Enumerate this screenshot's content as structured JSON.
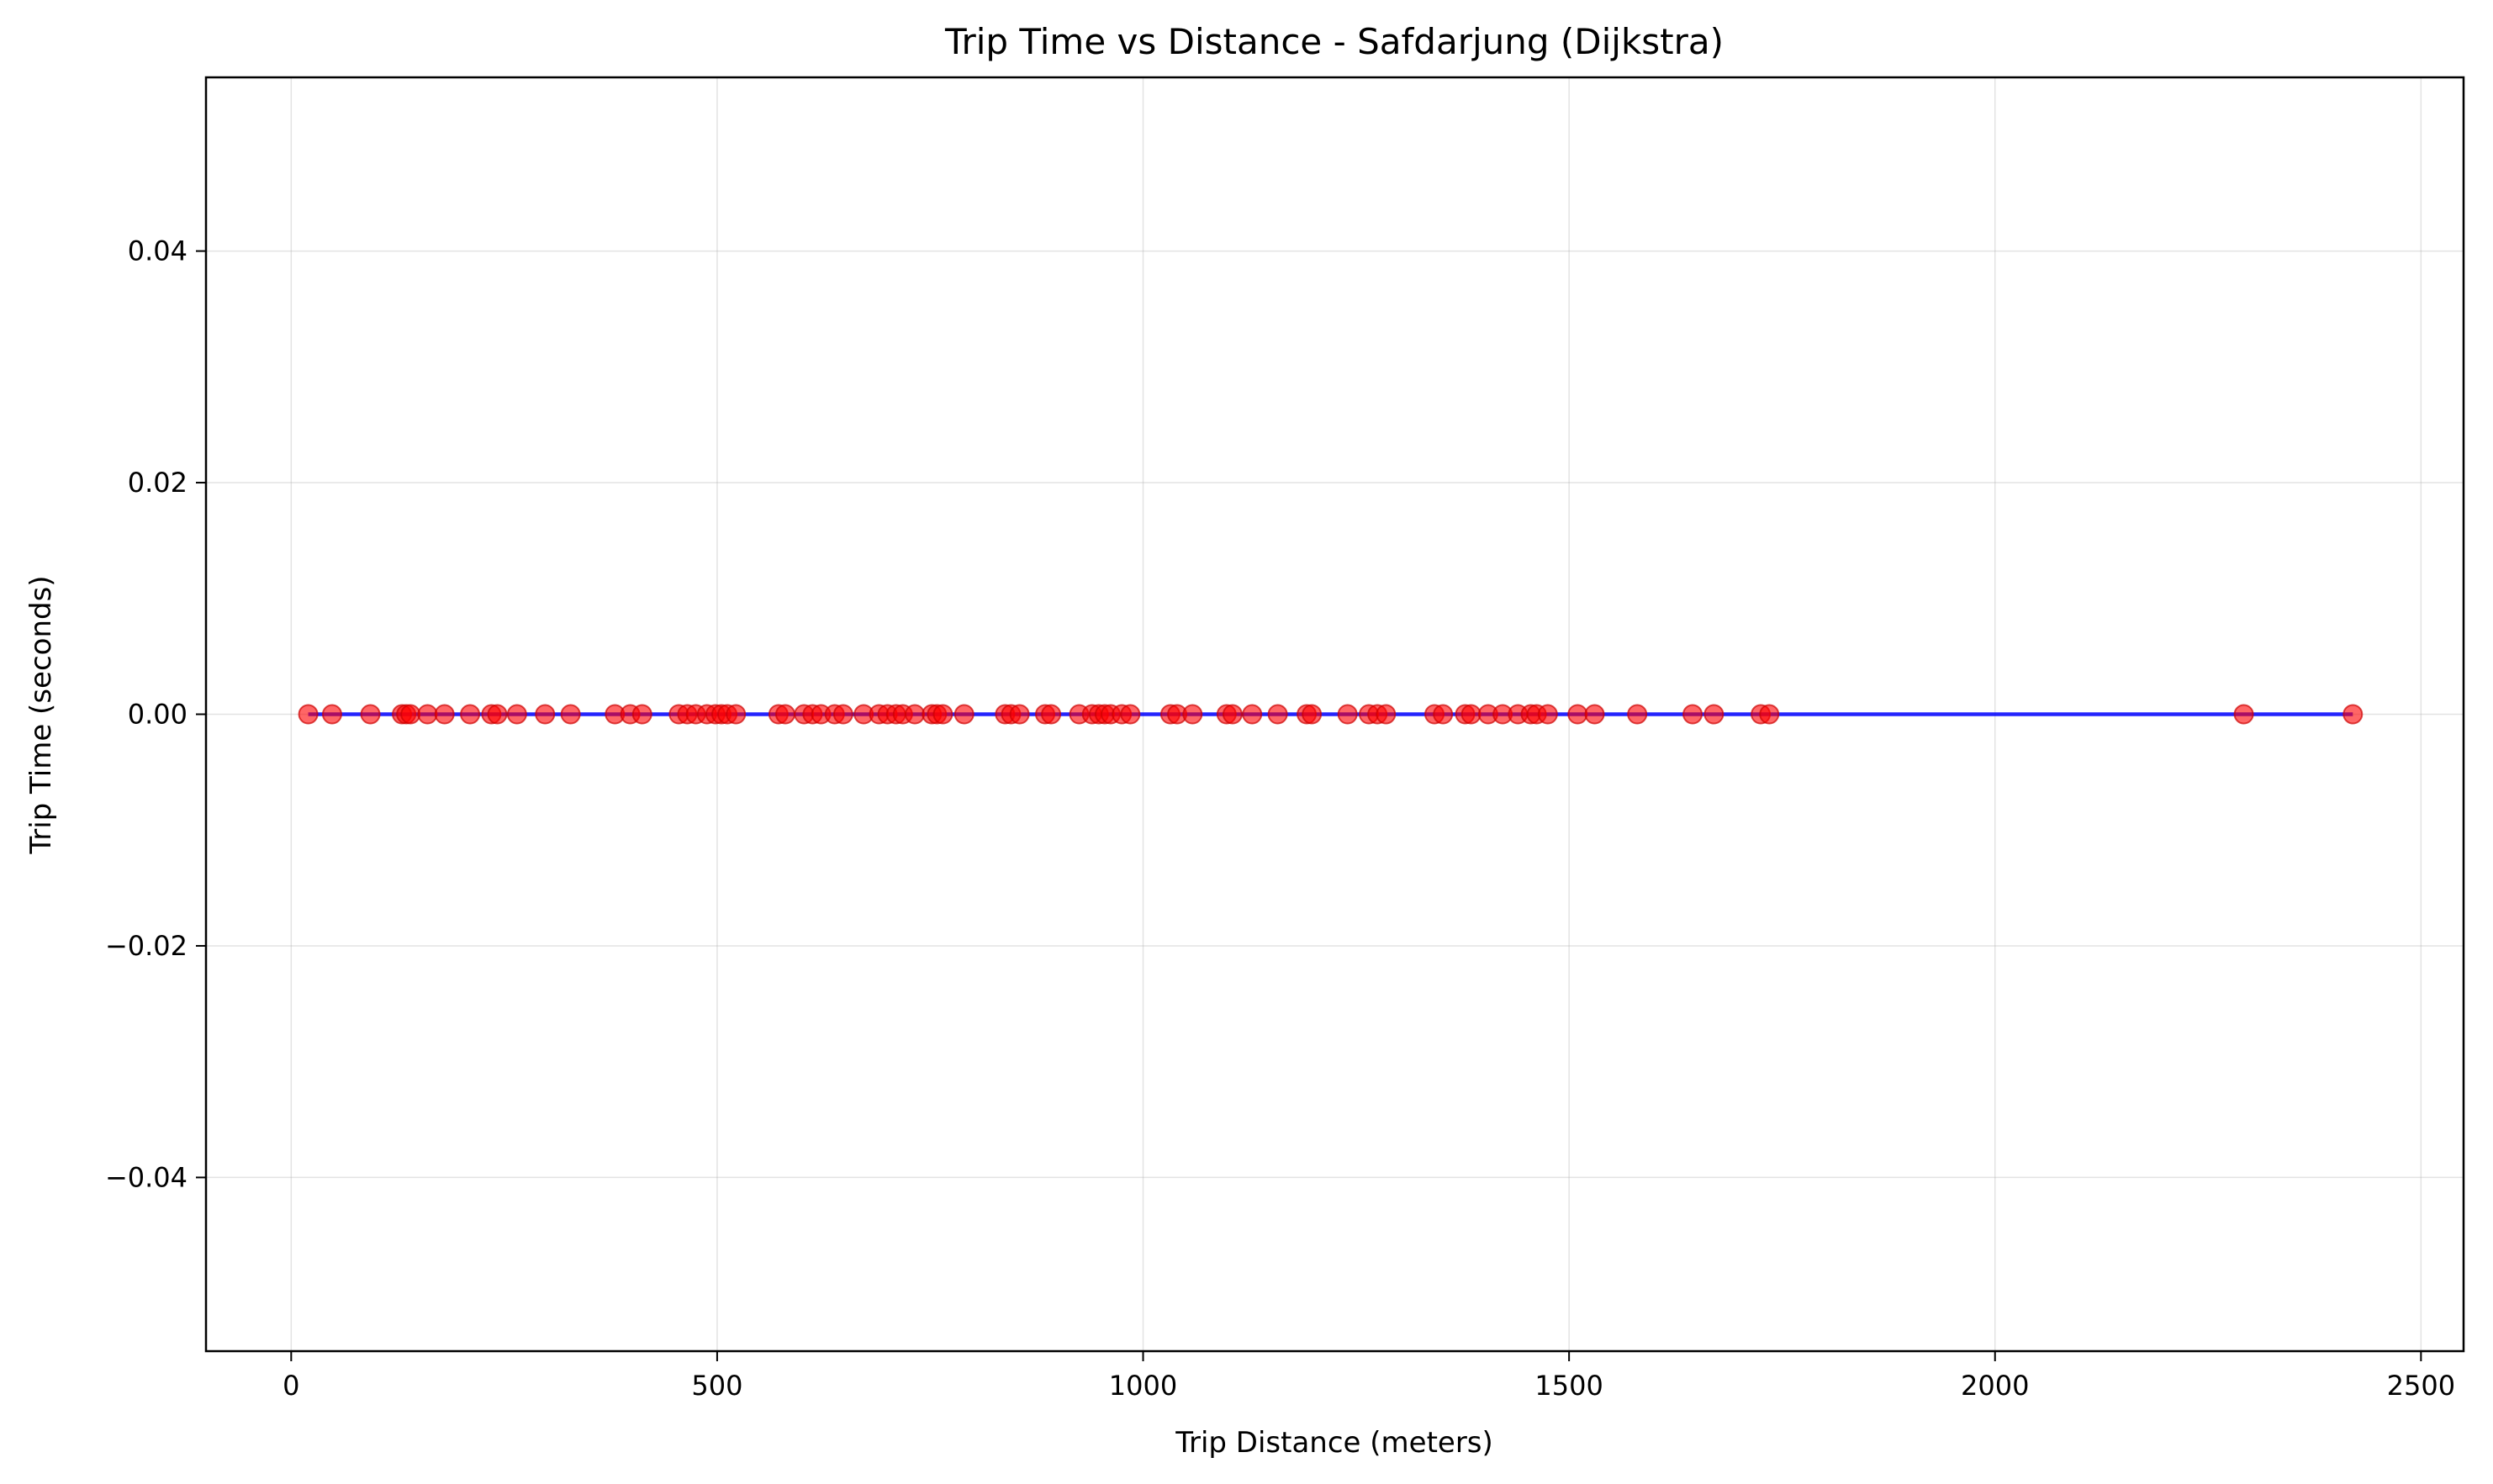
{
  "chart_data": {
    "type": "scatter",
    "title": "Trip Time vs Distance - Safdarjung (Dijkstra)",
    "xlabel": "Trip Distance (meters)",
    "ylabel": "Trip Time (seconds)",
    "xlim": [
      -100,
      2550
    ],
    "ylim": [
      -0.055,
      0.055
    ],
    "xticks": [
      0,
      500,
      1000,
      1500,
      2000,
      2500
    ],
    "xtick_labels": [
      "0",
      "500",
      "1000",
      "1500",
      "2000",
      "2500"
    ],
    "yticks": [
      -0.04,
      -0.02,
      0.0,
      0.02,
      0.04
    ],
    "ytick_labels": [
      "−0.04",
      "−0.02",
      "0.00",
      "0.02",
      "0.04"
    ],
    "grid": true,
    "point_color": "#ff0000",
    "point_edge_color": "#cc0000",
    "trend_line_color": "#0000ff",
    "points": [
      {
        "x": 20,
        "y": 0
      },
      {
        "x": 48,
        "y": 0
      },
      {
        "x": 93,
        "y": 0
      },
      {
        "x": 130,
        "y": 0
      },
      {
        "x": 135,
        "y": 0
      },
      {
        "x": 140,
        "y": 0
      },
      {
        "x": 160,
        "y": 0
      },
      {
        "x": 180,
        "y": 0
      },
      {
        "x": 210,
        "y": 0
      },
      {
        "x": 235,
        "y": 0
      },
      {
        "x": 242,
        "y": 0
      },
      {
        "x": 265,
        "y": 0
      },
      {
        "x": 298,
        "y": 0
      },
      {
        "x": 328,
        "y": 0
      },
      {
        "x": 380,
        "y": 0
      },
      {
        "x": 398,
        "y": 0
      },
      {
        "x": 412,
        "y": 0
      },
      {
        "x": 455,
        "y": 0
      },
      {
        "x": 465,
        "y": 0
      },
      {
        "x": 475,
        "y": 0
      },
      {
        "x": 488,
        "y": 0
      },
      {
        "x": 498,
        "y": 0
      },
      {
        "x": 505,
        "y": 0
      },
      {
        "x": 512,
        "y": 0
      },
      {
        "x": 522,
        "y": 0
      },
      {
        "x": 572,
        "y": 0
      },
      {
        "x": 580,
        "y": 0
      },
      {
        "x": 602,
        "y": 0
      },
      {
        "x": 612,
        "y": 0
      },
      {
        "x": 622,
        "y": 0
      },
      {
        "x": 638,
        "y": 0
      },
      {
        "x": 648,
        "y": 0
      },
      {
        "x": 672,
        "y": 0
      },
      {
        "x": 690,
        "y": 0
      },
      {
        "x": 700,
        "y": 0
      },
      {
        "x": 710,
        "y": 0
      },
      {
        "x": 718,
        "y": 0
      },
      {
        "x": 732,
        "y": 0
      },
      {
        "x": 752,
        "y": 0
      },
      {
        "x": 758,
        "y": 0
      },
      {
        "x": 765,
        "y": 0
      },
      {
        "x": 790,
        "y": 0
      },
      {
        "x": 838,
        "y": 0
      },
      {
        "x": 845,
        "y": 0
      },
      {
        "x": 855,
        "y": 0
      },
      {
        "x": 885,
        "y": 0
      },
      {
        "x": 892,
        "y": 0
      },
      {
        "x": 925,
        "y": 0
      },
      {
        "x": 940,
        "y": 0
      },
      {
        "x": 948,
        "y": 0
      },
      {
        "x": 955,
        "y": 0
      },
      {
        "x": 962,
        "y": 0
      },
      {
        "x": 975,
        "y": 0
      },
      {
        "x": 985,
        "y": 0
      },
      {
        "x": 1032,
        "y": 0
      },
      {
        "x": 1040,
        "y": 0
      },
      {
        "x": 1058,
        "y": 0
      },
      {
        "x": 1098,
        "y": 0
      },
      {
        "x": 1105,
        "y": 0
      },
      {
        "x": 1128,
        "y": 0
      },
      {
        "x": 1158,
        "y": 0
      },
      {
        "x": 1192,
        "y": 0
      },
      {
        "x": 1198,
        "y": 0
      },
      {
        "x": 1240,
        "y": 0
      },
      {
        "x": 1265,
        "y": 0
      },
      {
        "x": 1275,
        "y": 0
      },
      {
        "x": 1285,
        "y": 0
      },
      {
        "x": 1342,
        "y": 0
      },
      {
        "x": 1352,
        "y": 0
      },
      {
        "x": 1378,
        "y": 0
      },
      {
        "x": 1385,
        "y": 0
      },
      {
        "x": 1405,
        "y": 0
      },
      {
        "x": 1422,
        "y": 0
      },
      {
        "x": 1440,
        "y": 0
      },
      {
        "x": 1455,
        "y": 0
      },
      {
        "x": 1462,
        "y": 0
      },
      {
        "x": 1475,
        "y": 0
      },
      {
        "x": 1510,
        "y": 0
      },
      {
        "x": 1530,
        "y": 0
      },
      {
        "x": 1580,
        "y": 0
      },
      {
        "x": 1645,
        "y": 0
      },
      {
        "x": 1670,
        "y": 0
      },
      {
        "x": 1725,
        "y": 0
      },
      {
        "x": 1735,
        "y": 0
      },
      {
        "x": 2292,
        "y": 0
      },
      {
        "x": 2420,
        "y": 0
      }
    ],
    "trend_line": [
      {
        "x": 20,
        "y": 0
      },
      {
        "x": 2420,
        "y": 0
      }
    ]
  }
}
